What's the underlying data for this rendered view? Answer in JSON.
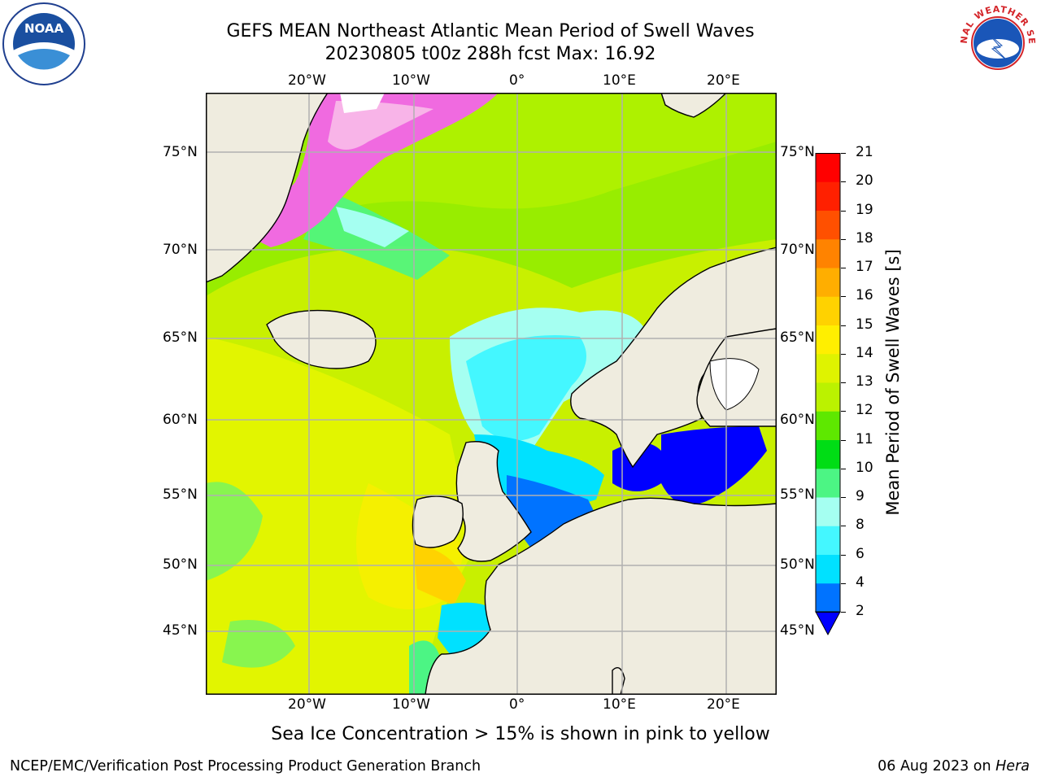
{
  "title": {
    "line1": "GEFS MEAN Northeast Atlantic Mean Period of Swell Waves",
    "line2": "20230805 t00z 288h fcst   Max: 16.92"
  },
  "logos": {
    "left_name": "noaa-logo",
    "left_text": "NOAA",
    "right_name": "national-weather-service-logo",
    "right_text": "NATIONAL WEATHER SERVICE"
  },
  "map": {
    "lon_labels": [
      "20°W",
      "10°W",
      "0°",
      "10°E",
      "20°E"
    ],
    "lat_labels": [
      "75°N",
      "70°N",
      "65°N",
      "60°N",
      "55°N",
      "50°N",
      "45°N"
    ],
    "projection": "polar-stereographic-like",
    "ocean_fill": "swell-period",
    "land_color": "#efecdf"
  },
  "colorbar": {
    "label": "Mean Period of Swell Waves [s]",
    "ticks": [
      "2",
      "4",
      "6",
      "8",
      "9",
      "10",
      "11",
      "12",
      "13",
      "14",
      "15",
      "16",
      "17",
      "18",
      "19",
      "20",
      "21"
    ],
    "colors": [
      "#0000ff",
      "#0073ff",
      "#00e1ff",
      "#44f7ff",
      "#a5fff1",
      "#4cf584",
      "#00dd15",
      "#5ee800",
      "#bbf200",
      "#dff300",
      "#ffef00",
      "#ffd200",
      "#ffae00",
      "#ff8300",
      "#ff5000",
      "#ff2000",
      "#ff0000"
    ],
    "extend": "min"
  },
  "note": "Sea Ice Concentration > 15% is shown in pink to yellow",
  "footer": {
    "left": "NCEP/EMC/Verification Post Processing Product Generation Branch",
    "right_prefix": "06 Aug 2023 on ",
    "right_machine": "Hera"
  }
}
